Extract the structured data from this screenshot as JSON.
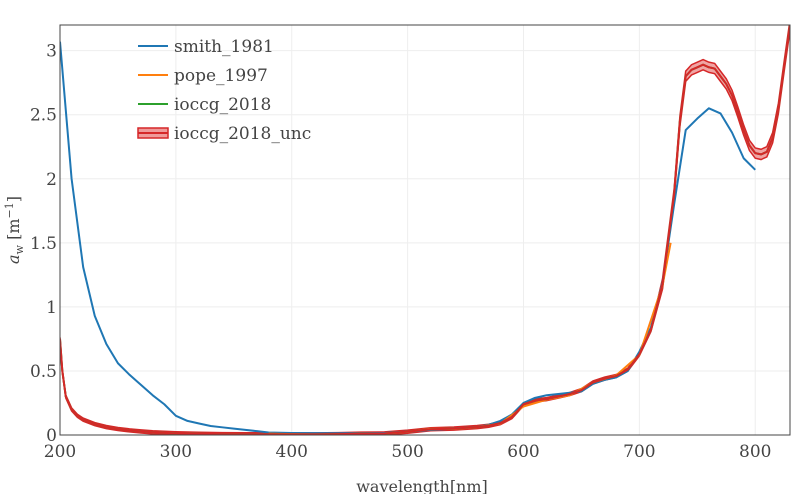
{
  "chart_data": {
    "type": "line",
    "xlabel": "wavelength[nm]",
    "ylabel": {
      "main": "a",
      "sub": "w",
      "unit_open": " [m",
      "unit_sup": "−1",
      "unit_close": "]"
    },
    "xlim": [
      200,
      830
    ],
    "ylim": [
      0,
      3.2
    ],
    "xticks": [
      200,
      300,
      400,
      500,
      600,
      700,
      800
    ],
    "yticks": [
      0,
      0.5,
      1,
      1.5,
      2,
      2.5,
      3
    ],
    "ytick_labels": [
      "0",
      "0.5",
      "1",
      "1.5",
      "2",
      "2.5",
      "3"
    ],
    "grid": true,
    "legend_position": "top-left",
    "series": [
      {
        "name": "smith_1981",
        "color": "#1f77b4",
        "x": [
          200,
          210,
          220,
          230,
          240,
          250,
          260,
          270,
          280,
          290,
          300,
          310,
          320,
          330,
          340,
          350,
          360,
          370,
          380,
          390,
          400,
          420,
          440,
          460,
          480,
          500,
          520,
          540,
          560,
          570,
          580,
          590,
          600,
          610,
          620,
          630,
          640,
          650,
          660,
          670,
          680,
          690,
          700,
          710,
          720,
          730,
          740,
          750,
          760,
          770,
          780,
          790,
          800
        ],
        "y": [
          3.07,
          2.0,
          1.31,
          0.93,
          0.71,
          0.56,
          0.47,
          0.39,
          0.31,
          0.24,
          0.15,
          0.11,
          0.09,
          0.07,
          0.06,
          0.05,
          0.04,
          0.03,
          0.02,
          0.018,
          0.016,
          0.015,
          0.014,
          0.014,
          0.016,
          0.026,
          0.04,
          0.05,
          0.062,
          0.08,
          0.11,
          0.16,
          0.25,
          0.29,
          0.31,
          0.32,
          0.33,
          0.34,
          0.4,
          0.43,
          0.45,
          0.5,
          0.65,
          0.84,
          1.19,
          1.8,
          2.38,
          2.47,
          2.55,
          2.51,
          2.36,
          2.16,
          2.07
        ]
      },
      {
        "name": "pope_1997",
        "color": "#ff7f0e",
        "x": [
          380,
          400,
          420,
          440,
          460,
          480,
          500,
          520,
          540,
          560,
          580,
          600,
          620,
          640,
          660,
          680,
          700,
          720,
          727
        ],
        "y": [
          0.011,
          0.0066,
          0.0045,
          0.0063,
          0.0098,
          0.0115,
          0.0257,
          0.0477,
          0.0474,
          0.0619,
          0.0896,
          0.2224,
          0.2755,
          0.3112,
          0.41,
          0.465,
          0.624,
          1.169,
          1.5
        ]
      },
      {
        "name": "ioccg_2018",
        "color": "#2ca02c",
        "x": [
          200,
          202,
          205,
          210,
          215,
          220,
          230,
          240,
          250,
          260,
          270,
          280,
          290,
          300,
          320,
          340,
          360,
          380,
          400,
          420,
          440,
          460,
          480,
          500,
          520,
          540,
          560,
          570,
          580,
          590,
          600,
          610,
          620,
          630,
          640,
          650,
          660,
          670,
          680,
          690,
          700,
          710,
          720,
          730,
          735,
          740,
          745,
          750,
          755,
          760,
          765,
          770,
          775,
          780,
          785,
          790,
          795,
          800,
          805,
          810,
          815,
          820,
          825,
          830
        ],
        "y": [
          0.75,
          0.5,
          0.3,
          0.2,
          0.15,
          0.12,
          0.085,
          0.062,
          0.047,
          0.036,
          0.028,
          0.021,
          0.017,
          0.013,
          0.009,
          0.007,
          0.006,
          0.006,
          0.005,
          0.005,
          0.007,
          0.01,
          0.012,
          0.026,
          0.045,
          0.05,
          0.062,
          0.072,
          0.093,
          0.14,
          0.24,
          0.27,
          0.28,
          0.3,
          0.32,
          0.35,
          0.41,
          0.44,
          0.46,
          0.51,
          0.63,
          0.82,
          1.18,
          1.88,
          2.45,
          2.8,
          2.85,
          2.87,
          2.89,
          2.87,
          2.86,
          2.8,
          2.74,
          2.65,
          2.52,
          2.38,
          2.26,
          2.2,
          2.19,
          2.21,
          2.32,
          2.55,
          2.88,
          3.2
        ]
      },
      {
        "name": "ioccg_2018_unc",
        "color": "#d62728",
        "band_color": "#ef9a9a",
        "x": [
          200,
          202,
          205,
          210,
          215,
          220,
          230,
          240,
          250,
          260,
          270,
          280,
          290,
          300,
          320,
          340,
          360,
          380,
          400,
          420,
          440,
          460,
          480,
          500,
          520,
          540,
          560,
          570,
          580,
          590,
          600,
          610,
          620,
          630,
          640,
          650,
          660,
          670,
          680,
          690,
          700,
          710,
          720,
          730,
          735,
          740,
          745,
          750,
          755,
          760,
          765,
          770,
          775,
          780,
          785,
          790,
          795,
          800,
          805,
          810,
          815,
          820,
          825,
          830
        ],
        "y": [
          0.75,
          0.5,
          0.3,
          0.2,
          0.15,
          0.12,
          0.085,
          0.062,
          0.047,
          0.036,
          0.028,
          0.021,
          0.017,
          0.013,
          0.009,
          0.007,
          0.006,
          0.006,
          0.005,
          0.005,
          0.007,
          0.01,
          0.012,
          0.026,
          0.045,
          0.05,
          0.062,
          0.072,
          0.093,
          0.14,
          0.24,
          0.27,
          0.28,
          0.3,
          0.32,
          0.35,
          0.41,
          0.44,
          0.46,
          0.51,
          0.63,
          0.82,
          1.18,
          1.88,
          2.45,
          2.8,
          2.85,
          2.87,
          2.89,
          2.87,
          2.86,
          2.8,
          2.74,
          2.65,
          2.52,
          2.38,
          2.26,
          2.2,
          2.19,
          2.21,
          2.32,
          2.55,
          2.88,
          3.2
        ],
        "band_halfwidth": 0.04
      }
    ]
  }
}
